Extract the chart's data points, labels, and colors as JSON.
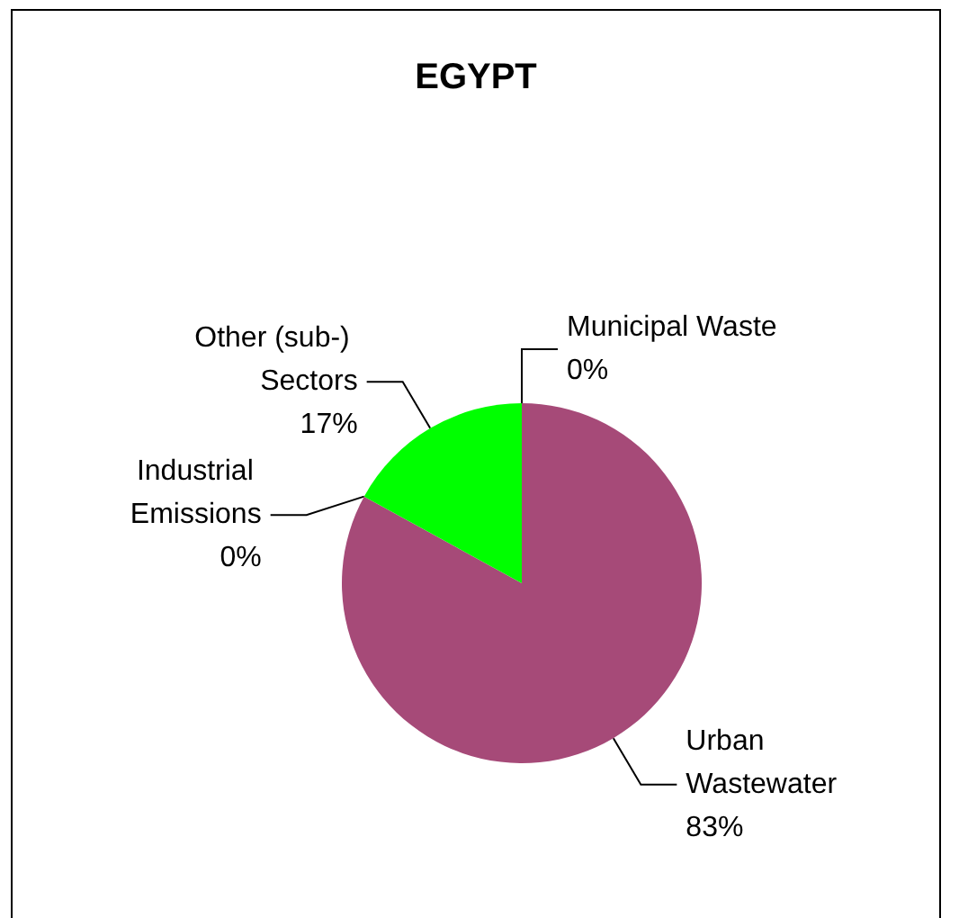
{
  "chart_data": {
    "type": "pie",
    "title": "EGYPT",
    "categories": [
      "Urban Wastewater",
      "Industrial Emissions",
      "Other (sub-) Sectors",
      "Municipal Waste"
    ],
    "values": [
      83,
      0,
      17,
      0
    ],
    "colors": [
      "#a64a78",
      "#9999ff",
      "#00ff00",
      "#ffff99"
    ],
    "value_labels": [
      "83%",
      "0%",
      "17%",
      "0%"
    ]
  }
}
